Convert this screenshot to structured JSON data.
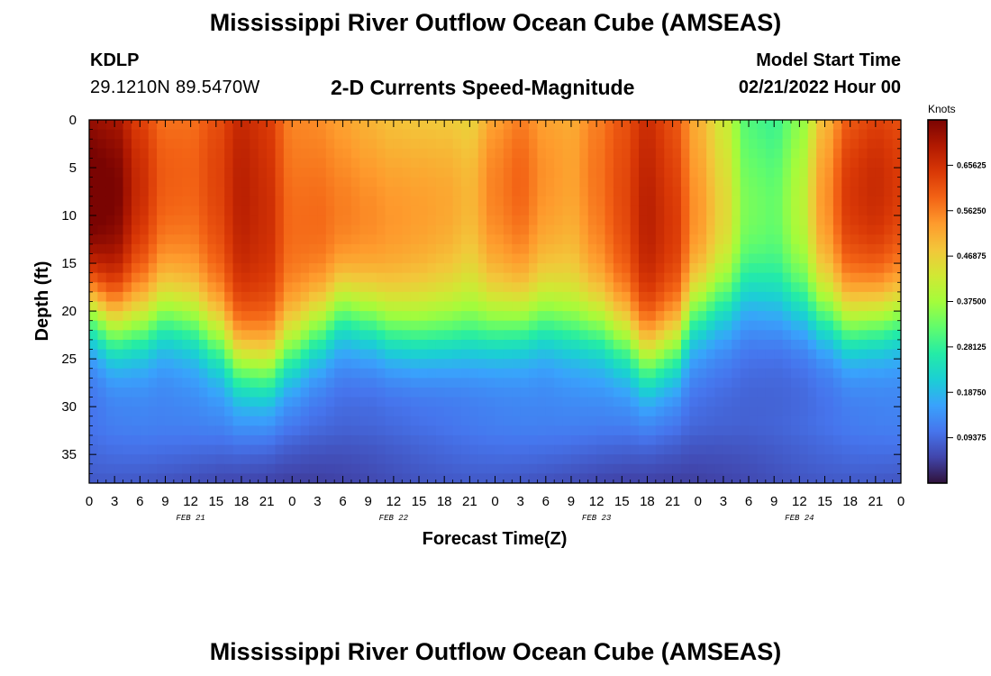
{
  "header": {
    "title": "Mississippi River Outflow Ocean Cube (AMSEAS)",
    "station_id": "KDLP",
    "station_coords": "29.1210N  89.5470W",
    "plot_title": "2-D Currents Speed-Magnitude",
    "model_start_label": "Model Start Time",
    "model_start_time": "02/21/2022 Hour 00"
  },
  "footer": {
    "title": "Mississippi River Outflow Ocean Cube (AMSEAS)"
  },
  "chart_data": {
    "type": "heatmap",
    "title": "2-D Currents Speed-Magnitude",
    "xlabel": "Forecast Time(Z)",
    "ylabel": "Depth (ft)",
    "x_tick_labels": [
      "0",
      "3",
      "6",
      "9",
      "12",
      "15",
      "18",
      "21",
      "0",
      "3",
      "6",
      "9",
      "12",
      "15",
      "18",
      "21",
      "0",
      "3",
      "6",
      "9",
      "12",
      "15",
      "18",
      "21",
      "0",
      "3",
      "6",
      "9",
      "12",
      "15",
      "18",
      "21",
      "0"
    ],
    "x_range_hours": [
      0,
      96
    ],
    "day_labels": [
      {
        "label": "FEB 21",
        "hour": 12
      },
      {
        "label": "FEB 22",
        "hour": 36
      },
      {
        "label": "FEB 23",
        "hour": 60
      },
      {
        "label": "FEB 24",
        "hour": 84
      }
    ],
    "y_ticks": [
      0,
      5,
      10,
      15,
      20,
      25,
      30,
      35
    ],
    "y_range": [
      0,
      38
    ],
    "y_inverted": true,
    "colorbar": {
      "unit": "Knots",
      "labels": [
        "0.65625",
        "0.56250",
        "0.46875",
        "0.37500",
        "0.28125",
        "0.18750",
        "0.09375"
      ],
      "min": 0,
      "max": 0.75
    },
    "colormap": [
      "#30123b",
      "#4145ab",
      "#4675ed",
      "#39a2fc",
      "#1bcfd4",
      "#24eca6",
      "#61fc6c",
      "#a4fc3b",
      "#d1e834",
      "#f3c63a",
      "#fe9b2d",
      "#f36315",
      "#d93806",
      "#b11901",
      "#7a0402"
    ],
    "speed_depth_profile": {
      "depths": [
        0,
        5,
        10,
        15,
        20,
        25,
        30,
        35,
        38
      ],
      "comment_free": true
    },
    "time_series": {
      "hours": [
        0,
        3,
        6,
        9,
        12,
        15,
        18,
        21,
        24,
        27,
        30,
        33,
        36,
        39,
        42,
        45,
        48,
        51,
        54,
        57,
        60,
        63,
        66,
        69,
        72,
        75,
        78,
        81,
        84,
        87,
        90,
        93,
        96
      ],
      "surface_speed": [
        0.72,
        0.7,
        0.62,
        0.56,
        0.56,
        0.6,
        0.66,
        0.64,
        0.56,
        0.56,
        0.54,
        0.52,
        0.5,
        0.49,
        0.48,
        0.46,
        0.52,
        0.55,
        0.51,
        0.5,
        0.55,
        0.6,
        0.66,
        0.62,
        0.52,
        0.44,
        0.32,
        0.3,
        0.36,
        0.5,
        0.6,
        0.62,
        0.6
      ],
      "mixed_layer_depth_ft": [
        20,
        22,
        22,
        21,
        21.5,
        23,
        25.5,
        26,
        24,
        22,
        20,
        21,
        22.5,
        23,
        23,
        23,
        22.5,
        22,
        21.5,
        22,
        22,
        23,
        25,
        24,
        20,
        19,
        18,
        19,
        20,
        21,
        22,
        21.5,
        21
      ]
    }
  }
}
